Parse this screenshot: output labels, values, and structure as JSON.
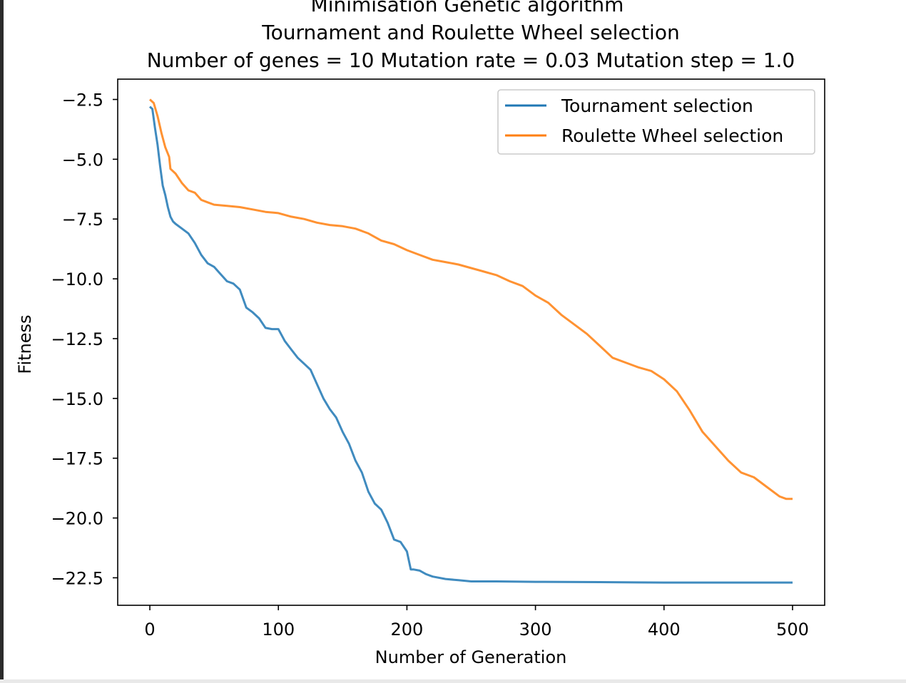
{
  "chart_data": {
    "type": "line",
    "title_lines": [
      "Minimisation Genetic algorithm",
      "Tournament and Roulette Wheel selection",
      "Number of genes = 10 Mutation rate = 0.03 Mutation step = 1.0"
    ],
    "xlabel": "Number of Generation",
    "ylabel": "Fitness",
    "xlim": [
      -25,
      525
    ],
    "ylim": [
      -23.65,
      -1.65
    ],
    "x_ticks": [
      0,
      100,
      200,
      300,
      400,
      500
    ],
    "x_tick_labels": [
      "0",
      "100",
      "200",
      "300",
      "400",
      "500"
    ],
    "y_ticks": [
      -2.5,
      -5.0,
      -7.5,
      -10.0,
      -12.5,
      -15.0,
      -17.5,
      -20.0,
      -22.5
    ],
    "y_tick_labels": [
      "−2.5",
      "−5.0",
      "−7.5",
      "−10.0",
      "−12.5",
      "−15.0",
      "−17.5",
      "−20.0",
      "−22.5"
    ],
    "grid": false,
    "legend_position": "top-right",
    "series": [
      {
        "name": "Tournament selection",
        "color": "#1f77b4",
        "x": [
          0,
          2,
          4,
          6,
          8,
          10,
          12,
          14,
          16,
          18,
          20,
          25,
          30,
          35,
          40,
          45,
          50,
          55,
          60,
          65,
          70,
          75,
          80,
          85,
          90,
          95,
          100,
          105,
          110,
          115,
          120,
          125,
          130,
          135,
          140,
          145,
          150,
          155,
          160,
          165,
          170,
          175,
          180,
          185,
          190,
          195,
          200,
          203,
          205,
          210,
          215,
          220,
          230,
          240,
          250,
          270,
          300,
          350,
          400,
          450,
          500
        ],
        "y": [
          -2.8,
          -2.9,
          -3.7,
          -4.4,
          -5.3,
          -6.1,
          -6.5,
          -7.0,
          -7.4,
          -7.6,
          -7.7,
          -7.9,
          -8.1,
          -8.5,
          -9.0,
          -9.35,
          -9.5,
          -9.8,
          -10.1,
          -10.2,
          -10.45,
          -11.2,
          -11.4,
          -11.65,
          -12.05,
          -12.1,
          -12.1,
          -12.6,
          -12.95,
          -13.3,
          -13.55,
          -13.8,
          -14.4,
          -15.0,
          -15.45,
          -15.8,
          -16.4,
          -16.9,
          -17.6,
          -18.1,
          -18.9,
          -19.4,
          -19.65,
          -20.2,
          -20.9,
          -21.0,
          -21.4,
          -22.15,
          -22.15,
          -22.2,
          -22.35,
          -22.45,
          -22.55,
          -22.6,
          -22.65,
          -22.65,
          -22.67,
          -22.68,
          -22.7,
          -22.7,
          -22.7
        ]
      },
      {
        "name": "Roulette Wheel selection",
        "color": "#ff7f0e",
        "x": [
          0,
          3,
          6,
          9,
          12,
          15,
          16,
          20,
          25,
          30,
          35,
          40,
          45,
          50,
          60,
          70,
          80,
          90,
          100,
          110,
          120,
          130,
          140,
          150,
          160,
          170,
          180,
          190,
          200,
          210,
          220,
          230,
          240,
          250,
          260,
          270,
          280,
          290,
          300,
          310,
          320,
          330,
          340,
          350,
          360,
          370,
          380,
          390,
          400,
          410,
          420,
          430,
          440,
          450,
          460,
          470,
          480,
          490,
          495,
          500
        ],
        "y": [
          -2.5,
          -2.65,
          -3.2,
          -3.9,
          -4.5,
          -4.9,
          -5.4,
          -5.6,
          -6.0,
          -6.3,
          -6.4,
          -6.7,
          -6.8,
          -6.9,
          -6.95,
          -7.0,
          -7.1,
          -7.2,
          -7.25,
          -7.4,
          -7.5,
          -7.65,
          -7.75,
          -7.8,
          -7.9,
          -8.1,
          -8.4,
          -8.55,
          -8.8,
          -9.0,
          -9.2,
          -9.3,
          -9.4,
          -9.55,
          -9.7,
          -9.85,
          -10.1,
          -10.3,
          -10.7,
          -11.0,
          -11.5,
          -11.9,
          -12.3,
          -12.8,
          -13.3,
          -13.5,
          -13.7,
          -13.85,
          -14.2,
          -14.7,
          -15.5,
          -16.4,
          -17.0,
          -17.6,
          -18.1,
          -18.3,
          -18.7,
          -19.1,
          -19.2,
          -19.2
        ]
      }
    ]
  }
}
